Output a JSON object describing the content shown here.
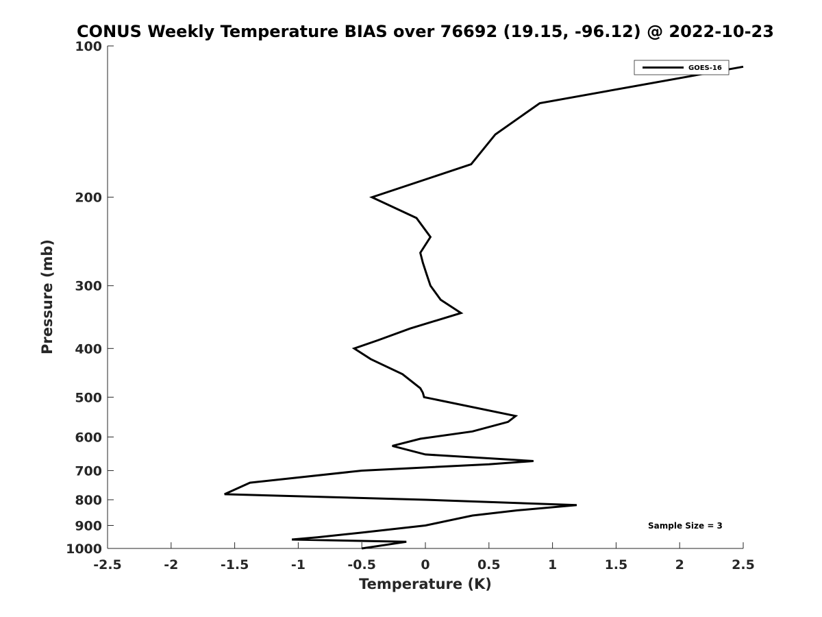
{
  "chart_data": {
    "type": "line",
    "title": "CONUS Weekly Temperature BIAS over 76692 (19.15, -96.12) @ 2022-10-23",
    "xlabel": "Temperature (K)",
    "ylabel": "Pressure (mb)",
    "xlim": [
      -2.5,
      2.5
    ],
    "ylim": [
      1000,
      100
    ],
    "y_scale": "log",
    "x_ticks": [
      "-2.5",
      "-2",
      "-1.5",
      "-1",
      "-0.5",
      "0",
      "0.5",
      "1",
      "1.5",
      "2",
      "2.5"
    ],
    "y_ticks": [
      "100",
      "200",
      "300",
      "400",
      "500",
      "600",
      "700",
      "800",
      "900",
      "1000"
    ],
    "grid": false,
    "legend_position": "top-right",
    "series": [
      {
        "name": "GOES-16",
        "color": "#000000",
        "x": [
          2.5,
          0.9,
          0.55,
          0.36,
          -0.42,
          -0.07,
          0.04,
          -0.04,
          -0.02,
          0.01,
          0.04,
          0.12,
          0.28,
          -0.12,
          -0.37,
          -0.56,
          -0.43,
          -0.18,
          -0.04,
          -0.02,
          -0.01,
          0.71,
          0.65,
          0.37,
          -0.04,
          -0.26,
          0.0,
          0.85,
          0.5,
          -0.5,
          -1.38,
          -1.58,
          0.0,
          1.19,
          0.72,
          0.37,
          0.0,
          -0.5,
          -0.85,
          -1.05,
          -0.15,
          -0.5
        ],
        "y": [
          110,
          130,
          150,
          172,
          200,
          220,
          240,
          258,
          270,
          285,
          300,
          320,
          340,
          365,
          385,
          400,
          420,
          450,
          480,
          490,
          500,
          545,
          560,
          585,
          605,
          625,
          650,
          670,
          680,
          700,
          740,
          780,
          800,
          820,
          840,
          860,
          900,
          930,
          950,
          960,
          970,
          1000
        ]
      }
    ],
    "annotations": [
      "Sample Size = 3"
    ]
  }
}
